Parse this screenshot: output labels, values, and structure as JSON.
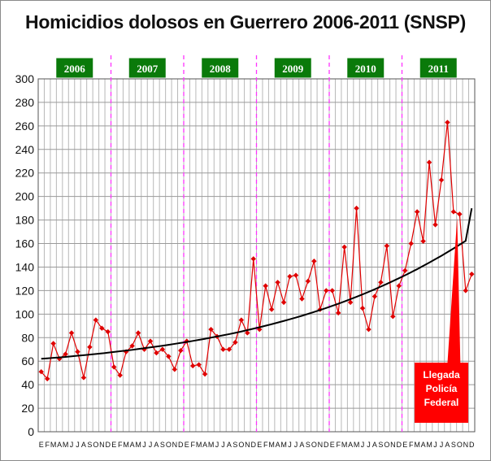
{
  "chart_data": {
    "type": "line",
    "title": "Homicidios dolosos en Guerrero 2006-2011 (SNSP)",
    "xlabel": "",
    "ylabel": "",
    "ylim": [
      0,
      300
    ],
    "yticks": [
      0,
      20,
      40,
      60,
      80,
      100,
      120,
      140,
      160,
      180,
      200,
      220,
      240,
      260,
      280,
      300
    ],
    "grid": true,
    "legend": "none",
    "years": [
      "2006",
      "2007",
      "2008",
      "2009",
      "2010",
      "2011"
    ],
    "month_letters": [
      "E",
      "F",
      "M",
      "A",
      "M",
      "J",
      "J",
      "A",
      "S",
      "O",
      "N",
      "D"
    ],
    "year_separators_after_month": [
      12,
      24,
      36,
      48,
      60
    ],
    "series": [
      {
        "color": "#e00000",
        "marker": "diamond",
        "values": [
          51,
          45,
          75,
          62,
          66,
          84,
          68,
          46,
          72,
          95,
          88,
          85,
          55,
          48,
          68,
          73,
          84,
          70,
          77,
          67,
          70,
          64,
          53,
          69,
          77,
          56,
          57,
          49,
          87,
          81,
          70,
          70,
          76,
          95,
          84,
          147,
          87,
          124,
          104,
          127,
          110,
          132,
          133,
          113,
          128,
          145,
          104,
          120,
          120,
          101,
          157,
          110,
          190,
          105,
          87,
          115,
          127,
          158,
          98,
          124,
          137,
          160,
          187,
          162,
          229,
          176,
          214,
          263,
          187,
          185,
          120,
          134
        ]
      },
      {
        "style": "trend",
        "color": "#000000",
        "values": [
          62,
          62.4,
          62.8,
          63.2,
          63.6,
          64.1,
          64.6,
          65.1,
          65.6,
          66.1,
          66.6,
          67.2,
          67.8,
          68.4,
          69,
          69.6,
          70.3,
          71,
          71.7,
          72.4,
          73.1,
          73.9,
          74.7,
          75.5,
          76.3,
          77.2,
          78.1,
          79,
          80,
          81,
          82,
          83,
          84.1,
          85.2,
          86.4,
          87.6,
          88.8,
          90.1,
          91.4,
          92.8,
          94.2,
          95.6,
          97.1,
          98.6,
          100.2,
          101.8,
          103.5,
          105.2,
          107,
          108.8,
          110.7,
          112.7,
          114.7,
          116.8,
          118.9,
          121.1,
          123.4,
          125.7,
          128.1,
          130.5,
          133,
          135.6,
          138.2,
          141,
          143.8,
          146.7,
          149.6,
          152.7,
          155.8,
          159,
          162.3,
          190
        ]
      }
    ],
    "annotations": [
      {
        "lines": [
          "Llegada",
          "Policía",
          "Federal"
        ],
        "points_to_month": 70,
        "color": "#ff0000"
      }
    ]
  }
}
